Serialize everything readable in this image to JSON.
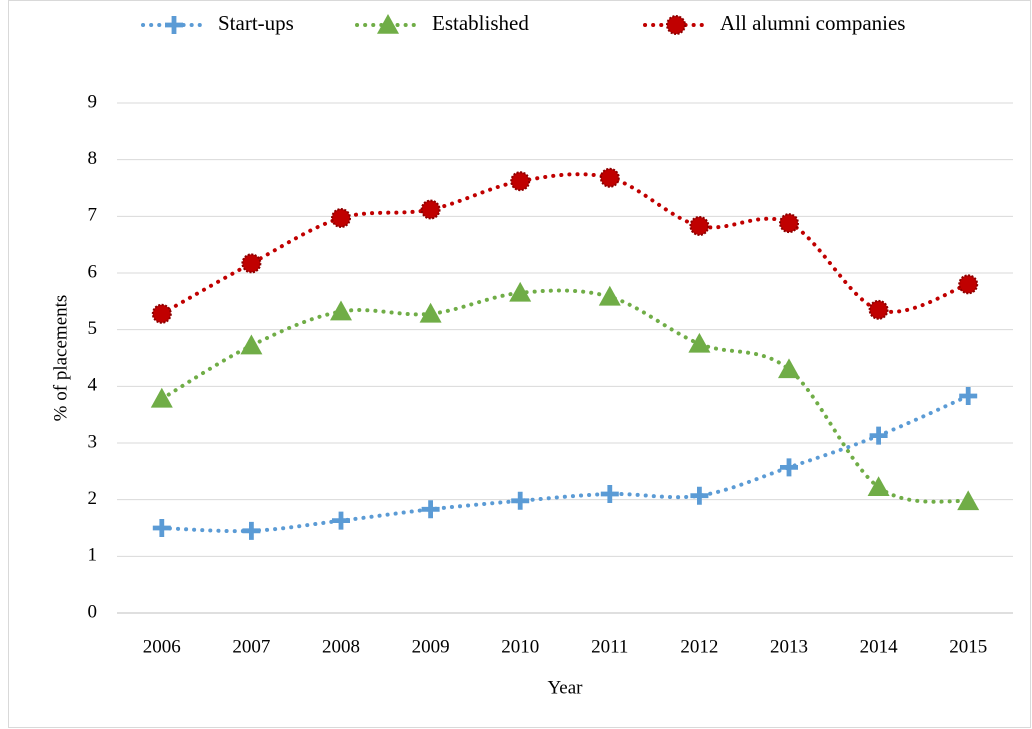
{
  "chart_data": {
    "type": "line",
    "xlabel": "Year",
    "ylabel": "% of placements",
    "categories": [
      "2006",
      "2007",
      "2008",
      "2009",
      "2010",
      "2011",
      "2012",
      "2013",
      "2014",
      "2015"
    ],
    "series": [
      {
        "name": "Start-ups",
        "color": "#5b9bd5",
        "marker": "plus",
        "values": [
          1.5,
          1.45,
          1.63,
          1.83,
          1.98,
          2.1,
          2.07,
          2.57,
          3.13,
          3.83
        ]
      },
      {
        "name": "Established",
        "color": "#70ad47",
        "marker": "triangle",
        "values": [
          3.78,
          4.72,
          5.32,
          5.28,
          5.65,
          5.58,
          4.75,
          4.3,
          2.22,
          1.97
        ]
      },
      {
        "name": "All alumni companies",
        "color": "#c00000",
        "marker": "circle",
        "values": [
          5.28,
          6.17,
          6.97,
          7.12,
          7.62,
          7.68,
          6.83,
          6.88,
          5.35,
          5.8
        ]
      }
    ],
    "ylim": [
      0,
      9
    ],
    "yticks": [
      0,
      1,
      2,
      3,
      4,
      5,
      6,
      7,
      8,
      9
    ],
    "grid": true,
    "legend": "top"
  }
}
